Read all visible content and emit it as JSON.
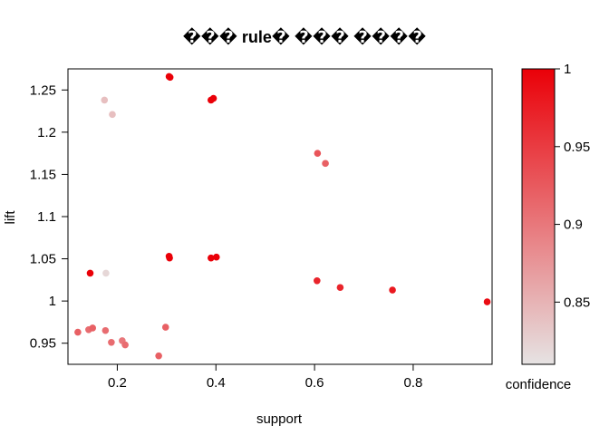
{
  "chart_data": {
    "type": "scatter",
    "title": "��� rule� ��� ����",
    "xlabel": "support",
    "ylabel": "lift",
    "xlim": [
      0.1,
      0.96
    ],
    "ylim": [
      0.925,
      1.275
    ],
    "x_ticks": [
      0.2,
      0.4,
      0.6,
      0.8
    ],
    "x_tick_labels": [
      "0.2",
      "0.4",
      "0.6",
      "0.8"
    ],
    "y_ticks": [
      0.95,
      1.0,
      1.05,
      1.1,
      1.15,
      1.2,
      1.25
    ],
    "y_tick_labels": [
      "0.95",
      "1",
      "1.05",
      "1.1",
      "1.15",
      "1.2",
      "1.25"
    ],
    "color_scale": {
      "label": "confidence",
      "min": 0.81,
      "max": 1.0,
      "ticks": [
        0.85,
        0.9,
        0.95,
        1.0
      ],
      "tick_labels": [
        "0.85",
        "0.9",
        "0.95",
        "1"
      ],
      "low_color": "#e6e3e3",
      "high_color": "#ea0008"
    },
    "points": [
      {
        "x": 0.305,
        "y": 1.266,
        "c": 1.0
      },
      {
        "x": 0.307,
        "y": 1.265,
        "c": 1.0
      },
      {
        "x": 0.39,
        "y": 1.238,
        "c": 1.0
      },
      {
        "x": 0.395,
        "y": 1.24,
        "c": 1.0
      },
      {
        "x": 0.174,
        "y": 1.238,
        "c": 0.84
      },
      {
        "x": 0.19,
        "y": 1.221,
        "c": 0.84
      },
      {
        "x": 0.606,
        "y": 1.175,
        "c": 0.93
      },
      {
        "x": 0.622,
        "y": 1.163,
        "c": 0.92
      },
      {
        "x": 0.145,
        "y": 1.033,
        "c": 1.0
      },
      {
        "x": 0.177,
        "y": 1.033,
        "c": 0.82
      },
      {
        "x": 0.305,
        "y": 1.053,
        "c": 1.0
      },
      {
        "x": 0.306,
        "y": 1.051,
        "c": 1.0
      },
      {
        "x": 0.39,
        "y": 1.051,
        "c": 1.0
      },
      {
        "x": 0.401,
        "y": 1.052,
        "c": 1.0
      },
      {
        "x": 0.605,
        "y": 1.024,
        "c": 0.97
      },
      {
        "x": 0.652,
        "y": 1.016,
        "c": 0.97
      },
      {
        "x": 0.758,
        "y": 1.013,
        "c": 0.98
      },
      {
        "x": 0.95,
        "y": 0.999,
        "c": 0.99
      },
      {
        "x": 0.12,
        "y": 0.963,
        "c": 0.92
      },
      {
        "x": 0.142,
        "y": 0.966,
        "c": 0.91
      },
      {
        "x": 0.15,
        "y": 0.968,
        "c": 0.92
      },
      {
        "x": 0.176,
        "y": 0.965,
        "c": 0.91
      },
      {
        "x": 0.188,
        "y": 0.951,
        "c": 0.91
      },
      {
        "x": 0.21,
        "y": 0.953,
        "c": 0.9
      },
      {
        "x": 0.216,
        "y": 0.948,
        "c": 0.91
      },
      {
        "x": 0.298,
        "y": 0.969,
        "c": 0.92
      },
      {
        "x": 0.284,
        "y": 0.935,
        "c": 0.92
      }
    ]
  }
}
